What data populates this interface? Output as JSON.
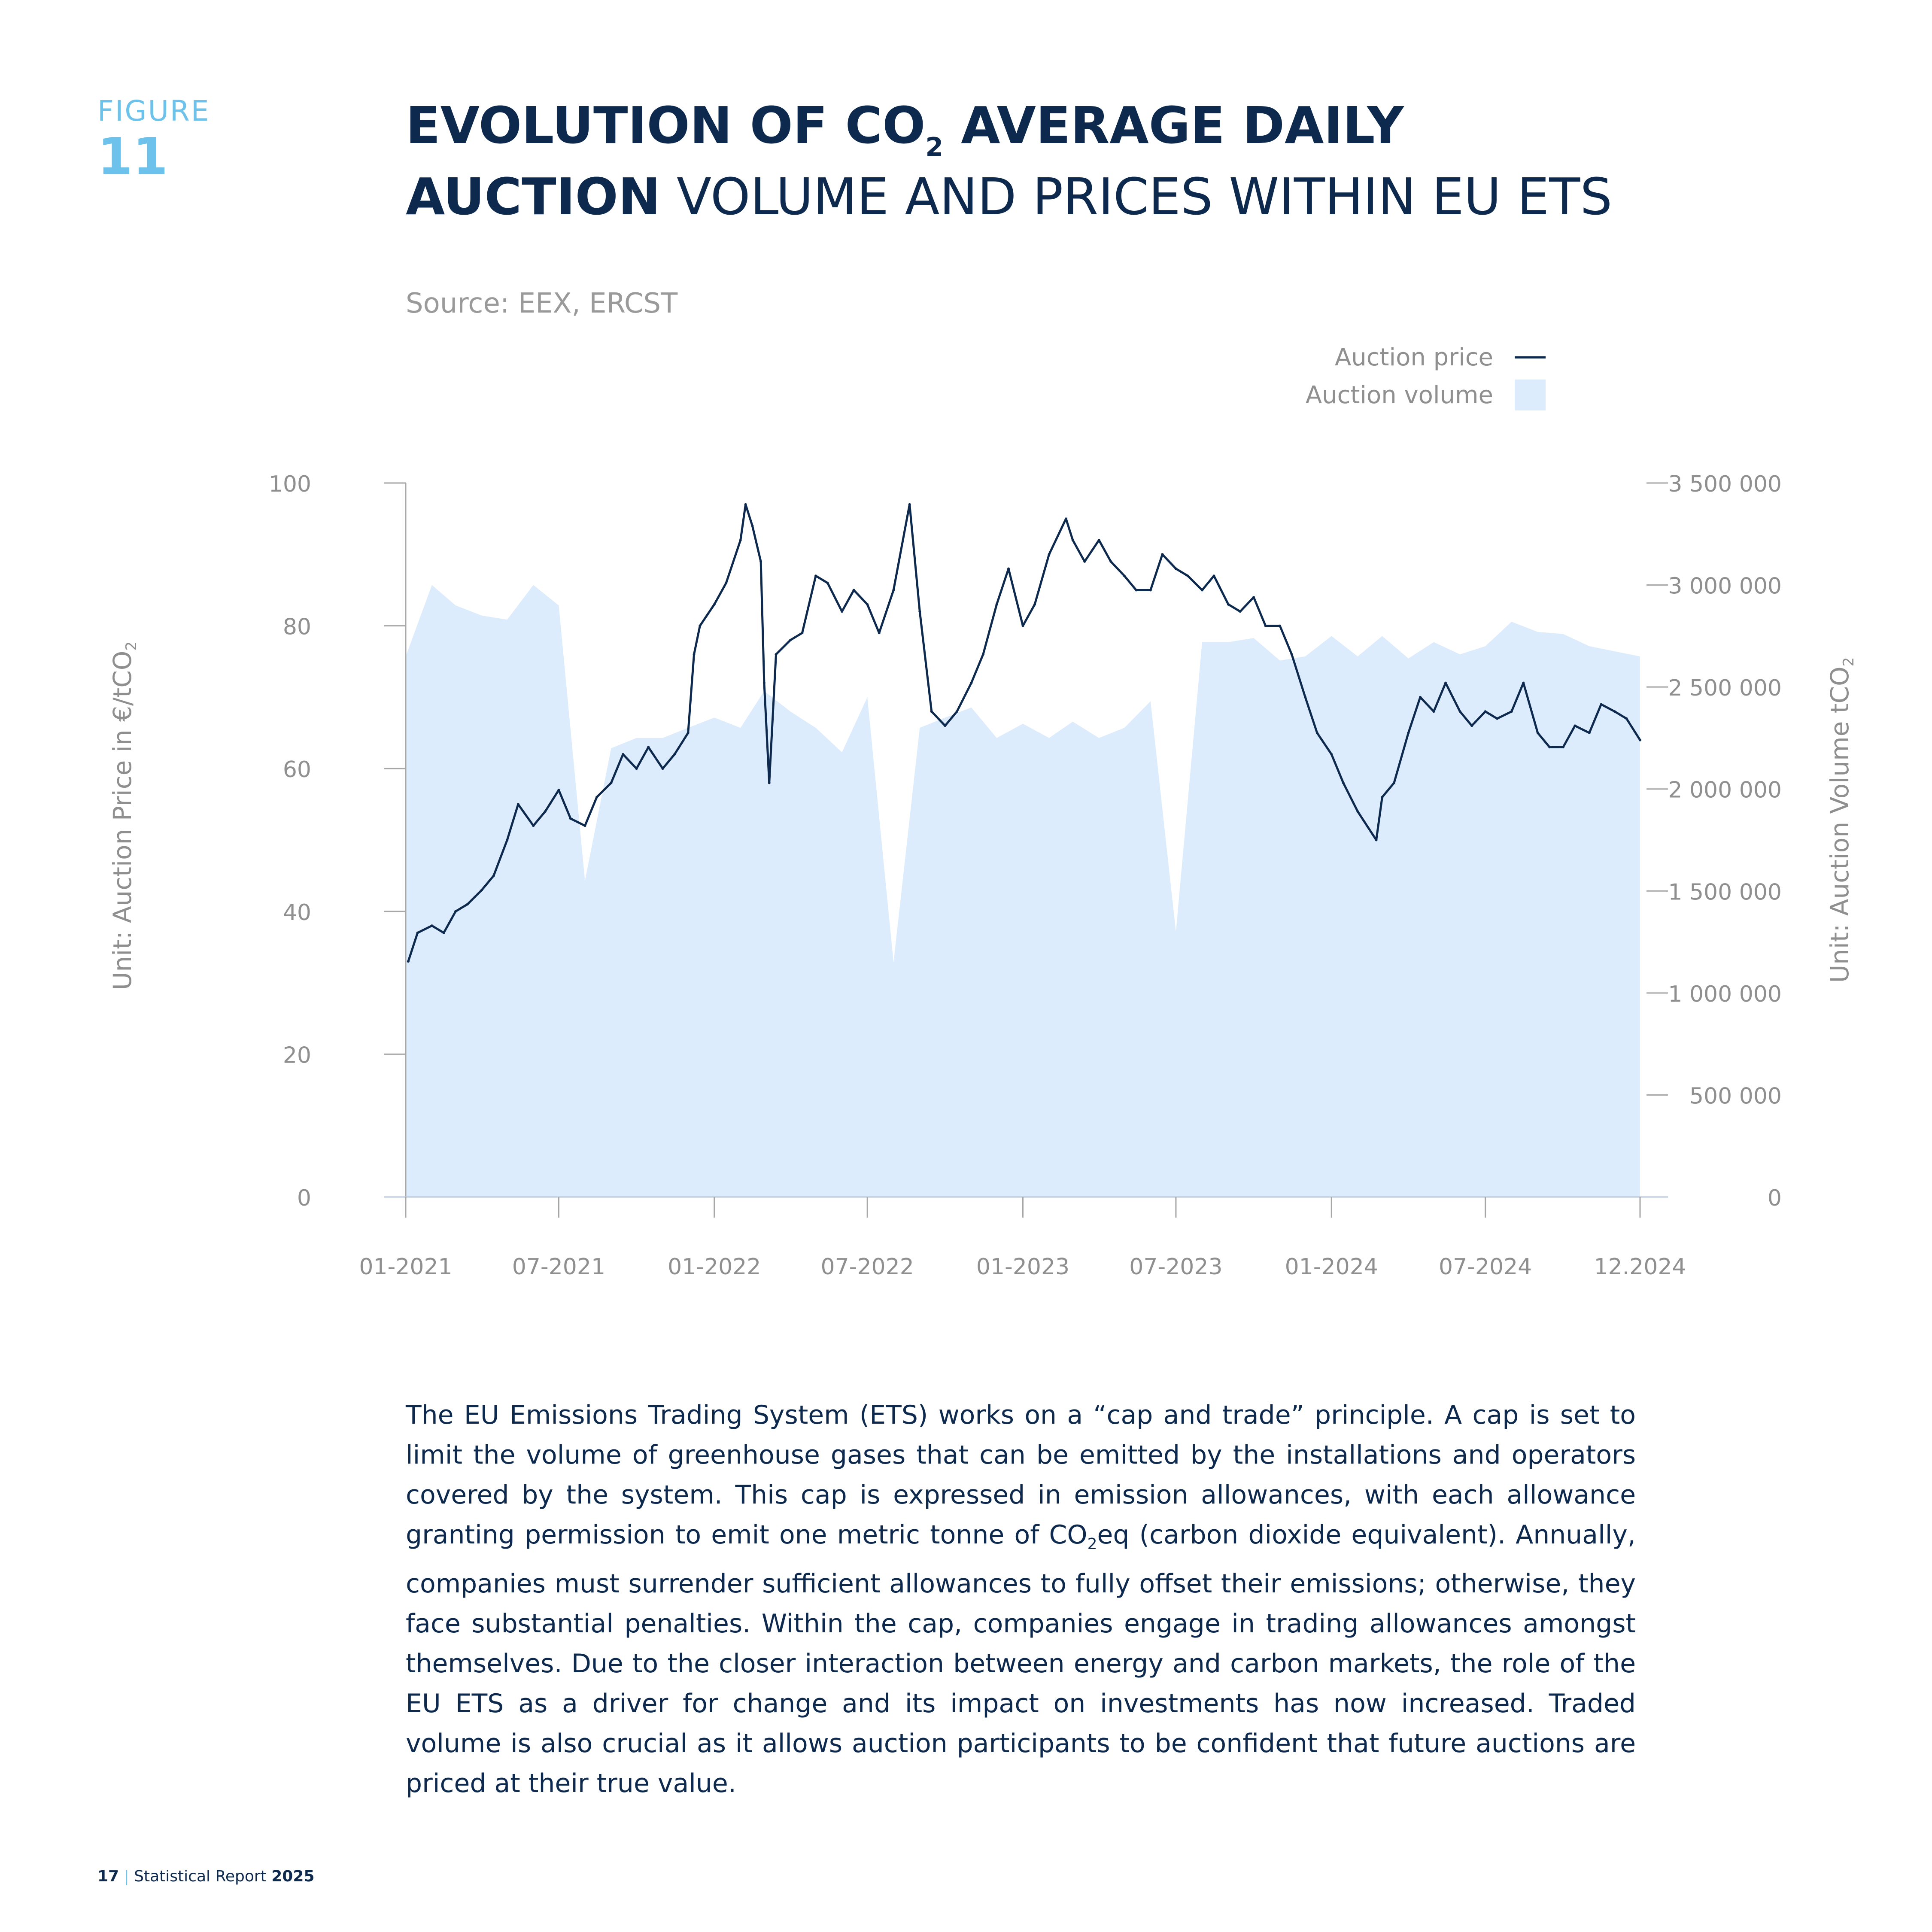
{
  "figure": {
    "label": "FIGURE",
    "number": "11"
  },
  "title": {
    "line1_bold": "EVOLUTION OF CO",
    "line1_sub": "2",
    "line1_bold_rest": " AVERAGE DAILY",
    "line2_bold": "AUCTION",
    "line2_rest": " VOLUME AND PRICES WITHIN EU ETS"
  },
  "source": "Source: EEX, ERCST",
  "legend": {
    "price_label": "Auction price",
    "volume_label": "Auction volume"
  },
  "colors": {
    "price_line": "#0d2a4e",
    "volume_area": "#dcecfc",
    "accent": "#6cc2ea",
    "axis": "#a7a7a7"
  },
  "chart_data": {
    "type": "area+line",
    "x_unit": "month",
    "x_tick_labels": [
      "01-2021",
      "07-2021",
      "01-2022",
      "07-2022",
      "01-2023",
      "07-2023",
      "01-2024",
      "07-2024",
      "12.2024"
    ],
    "y_left": {
      "label": "Unit: Auction Price in €/tCO",
      "label_sub": "2",
      "ylim": [
        0,
        100
      ],
      "ticks": [
        "100",
        "80",
        "60",
        "40",
        "20",
        "0"
      ]
    },
    "y_right": {
      "label": "Unit: Auction Volume tCO",
      "label_sub": "2",
      "ylim": [
        0,
        3500000
      ],
      "ticks": [
        "3 500 000",
        "3 000 000",
        "2 500 000",
        "2 000 000",
        "1 500 000",
        "1 000 000",
        "500 000",
        "0"
      ]
    },
    "series": [
      {
        "name": "Auction volume",
        "axis": "right",
        "type": "area",
        "points": [
          [
            "2021-01",
            2650000
          ],
          [
            "2021-02",
            3000000
          ],
          [
            "2021-03",
            2900000
          ],
          [
            "2021-04",
            2850000
          ],
          [
            "2021-05",
            2830000
          ],
          [
            "2021-06",
            3000000
          ],
          [
            "2021-07",
            2900000
          ],
          [
            "2021-08",
            1550000
          ],
          [
            "2021-09",
            2200000
          ],
          [
            "2021-10",
            2250000
          ],
          [
            "2021-11",
            2250000
          ],
          [
            "2021-12",
            2300000
          ],
          [
            "2022-01",
            2350000
          ],
          [
            "2022-02",
            2300000
          ],
          [
            "2022-03",
            2480000
          ],
          [
            "2022-04",
            2380000
          ],
          [
            "2022-05",
            2300000
          ],
          [
            "2022-06",
            2180000
          ],
          [
            "2022-07",
            2450000
          ],
          [
            "2022-08",
            1150000
          ],
          [
            "2022-09",
            2300000
          ],
          [
            "2022-10",
            2350000
          ],
          [
            "2022-11",
            2400000
          ],
          [
            "2022-12",
            2250000
          ],
          [
            "2023-01",
            2320000
          ],
          [
            "2023-02",
            2250000
          ],
          [
            "2023-03",
            2330000
          ],
          [
            "2023-04",
            2250000
          ],
          [
            "2023-05",
            2300000
          ],
          [
            "2023-06",
            2430000
          ],
          [
            "2023-07",
            1300000
          ],
          [
            "2023-08",
            2720000
          ],
          [
            "2023-09",
            2720000
          ],
          [
            "2023-10",
            2740000
          ],
          [
            "2023-11",
            2630000
          ],
          [
            "2023-12",
            2650000
          ],
          [
            "2024-01",
            2750000
          ],
          [
            "2024-02",
            2650000
          ],
          [
            "2024-03",
            2750000
          ],
          [
            "2024-04",
            2640000
          ],
          [
            "2024-05",
            2720000
          ],
          [
            "2024-06",
            2660000
          ],
          [
            "2024-07",
            2700000
          ],
          [
            "2024-08",
            2820000
          ],
          [
            "2024-09",
            2770000
          ],
          [
            "2024-10",
            2760000
          ],
          [
            "2024-11",
            2700000
          ],
          [
            "2024-12",
            2650000
          ]
        ]
      },
      {
        "name": "Auction price",
        "axis": "left",
        "type": "line",
        "points": [
          [
            "2021-01-04",
            33
          ],
          [
            "2021-01-15",
            37
          ],
          [
            "2021-02-01",
            38
          ],
          [
            "2021-02-15",
            37
          ],
          [
            "2021-03-01",
            40
          ],
          [
            "2021-03-15",
            41
          ],
          [
            "2021-04-01",
            43
          ],
          [
            "2021-04-15",
            45
          ],
          [
            "2021-05-01",
            50
          ],
          [
            "2021-05-14",
            55
          ],
          [
            "2021-06-01",
            52
          ],
          [
            "2021-06-15",
            54
          ],
          [
            "2021-07-01",
            57
          ],
          [
            "2021-07-15",
            53
          ],
          [
            "2021-08-01",
            52
          ],
          [
            "2021-08-15",
            56
          ],
          [
            "2021-09-01",
            58
          ],
          [
            "2021-09-15",
            62
          ],
          [
            "2021-10-01",
            60
          ],
          [
            "2021-10-15",
            63
          ],
          [
            "2021-11-01",
            60
          ],
          [
            "2021-11-15",
            62
          ],
          [
            "2021-12-01",
            65
          ],
          [
            "2021-12-08",
            76
          ],
          [
            "2021-12-15",
            80
          ],
          [
            "2022-01-01",
            83
          ],
          [
            "2022-01-15",
            86
          ],
          [
            "2022-02-01",
            92
          ],
          [
            "2022-02-07",
            97
          ],
          [
            "2022-02-15",
            94
          ],
          [
            "2022-02-25",
            89
          ],
          [
            "2022-03-01",
            72
          ],
          [
            "2022-03-07",
            58
          ],
          [
            "2022-03-15",
            76
          ],
          [
            "2022-04-01",
            78
          ],
          [
            "2022-04-15",
            79
          ],
          [
            "2022-05-01",
            87
          ],
          [
            "2022-05-15",
            86
          ],
          [
            "2022-06-01",
            82
          ],
          [
            "2022-06-15",
            85
          ],
          [
            "2022-07-01",
            83
          ],
          [
            "2022-07-15",
            79
          ],
          [
            "2022-08-01",
            85
          ],
          [
            "2022-08-20",
            97
          ],
          [
            "2022-09-01",
            82
          ],
          [
            "2022-09-15",
            68
          ],
          [
            "2022-10-01",
            66
          ],
          [
            "2022-10-15",
            68
          ],
          [
            "2022-11-01",
            72
          ],
          [
            "2022-11-15",
            76
          ],
          [
            "2022-12-01",
            83
          ],
          [
            "2022-12-15",
            88
          ],
          [
            "2023-01-01",
            80
          ],
          [
            "2023-01-15",
            83
          ],
          [
            "2023-02-01",
            90
          ],
          [
            "2023-02-21",
            95
          ],
          [
            "2023-03-01",
            92
          ],
          [
            "2023-03-15",
            89
          ],
          [
            "2023-04-01",
            92
          ],
          [
            "2023-04-15",
            89
          ],
          [
            "2023-05-01",
            87
          ],
          [
            "2023-05-15",
            85
          ],
          [
            "2023-06-01",
            85
          ],
          [
            "2023-06-15",
            90
          ],
          [
            "2023-07-01",
            88
          ],
          [
            "2023-07-15",
            87
          ],
          [
            "2023-08-01",
            85
          ],
          [
            "2023-08-15",
            87
          ],
          [
            "2023-09-01",
            83
          ],
          [
            "2023-09-15",
            82
          ],
          [
            "2023-10-01",
            84
          ],
          [
            "2023-10-15",
            80
          ],
          [
            "2023-11-01",
            80
          ],
          [
            "2023-11-15",
            76
          ],
          [
            "2023-12-01",
            70
          ],
          [
            "2023-12-15",
            65
          ],
          [
            "2024-01-01",
            62
          ],
          [
            "2024-01-15",
            58
          ],
          [
            "2024-02-01",
            54
          ],
          [
            "2024-02-23",
            50
          ],
          [
            "2024-03-01",
            56
          ],
          [
            "2024-03-15",
            58
          ],
          [
            "2024-04-01",
            65
          ],
          [
            "2024-04-15",
            70
          ],
          [
            "2024-05-01",
            68
          ],
          [
            "2024-05-15",
            72
          ],
          [
            "2024-06-01",
            68
          ],
          [
            "2024-06-15",
            66
          ],
          [
            "2024-07-01",
            68
          ],
          [
            "2024-07-15",
            67
          ],
          [
            "2024-08-01",
            68
          ],
          [
            "2024-08-15",
            72
          ],
          [
            "2024-09-01",
            65
          ],
          [
            "2024-09-15",
            63
          ],
          [
            "2024-10-01",
            63
          ],
          [
            "2024-10-15",
            66
          ],
          [
            "2024-11-01",
            65
          ],
          [
            "2024-11-15",
            69
          ],
          [
            "2024-12-01",
            68
          ],
          [
            "2024-12-15",
            67
          ],
          [
            "2024-12-31",
            64
          ]
        ]
      }
    ],
    "grid": false,
    "legend_position": "top-right"
  },
  "body_text_parts": [
    "The EU Emissions Trading System (ETS) works on a “cap and trade” principle. A cap is set to limit the volume of greenhouse gases that can be emitted by the installations and operators covered by the system. This cap is expressed in emission allowances, with each allowance granting permission to emit one metric tonne of CO",
    "2",
    "eq (carbon dioxide equivalent). Annually, companies must surrender sufficient allowances to fully offset their emissions; otherwise, they face substantial penalties. Within the cap, companies engage in trading allowances amongst themselves. Due to the closer interaction between energy and carbon markets, the role of the EU ETS as a driver for change and its impact on investments has now increased. Traded volume is also crucial as it allows auction participants to be confident that future auctions are priced at their true value."
  ],
  "footer": {
    "page": "17",
    "separator": "|",
    "report": " Statistical Report ",
    "year": "2025"
  }
}
